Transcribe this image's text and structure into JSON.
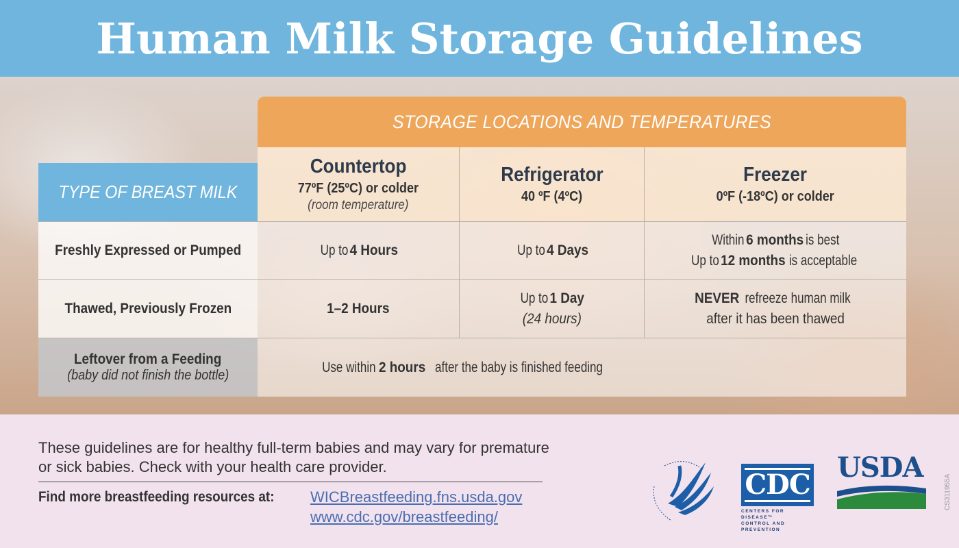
{
  "title": "Human Milk Storage Guidelines",
  "storage_header": "STORAGE LOCATIONS AND TEMPERATURES",
  "type_header": "TYPE OF BREAST MILK",
  "columns": {
    "countertop": {
      "title": "Countertop",
      "temp": "77ºF (25ºC) or colder",
      "note": "(room temperature)"
    },
    "refrigerator": {
      "title": "Refrigerator",
      "temp": "40 ºF (4ºC)"
    },
    "freezer": {
      "title": "Freezer",
      "temp": "0ºF (-18ºC) or colder"
    }
  },
  "rows": {
    "fresh": {
      "label": "Freshly Expressed or Pumped",
      "countertop_pre": "Up to ",
      "countertop_bold": "4 Hours",
      "refrigerator_pre": "Up to ",
      "refrigerator_bold": "4 Days",
      "freezer_l1_pre": "Within ",
      "freezer_l1_bold": "6 months",
      "freezer_l1_post": " is best",
      "freezer_l2_pre": "Up to ",
      "freezer_l2_bold": "12 months",
      "freezer_l2_post": " is acceptable"
    },
    "thawed": {
      "label": "Thawed, Previously Frozen",
      "countertop": "1–2 Hours",
      "refrigerator_pre": "Up to ",
      "refrigerator_bold": "1 Day",
      "refrigerator_note": "(24 hours)",
      "freezer_bold": "NEVER",
      "freezer_l1_post": " refreeze human milk",
      "freezer_l2": "after it has been thawed"
    },
    "leftover": {
      "label": "Leftover from a Feeding",
      "label_note": "(baby did not finish the bottle)",
      "value_pre": "Use within ",
      "value_bold": "2 hours",
      "value_post": " after the baby is finished feeding"
    }
  },
  "footer": {
    "note": "These guidelines are for healthy full-term babies and may vary for premature or sick babies. Check with your health care provider.",
    "find_label": "Find more breastfeeding resources at:",
    "link1": "WICBreastfeeding.fns.usda.gov",
    "link2": "www.cdc.gov/breastfeeding/",
    "cdc_text": "CDC",
    "cdc_sub1": "CENTERS FOR DISEASE™",
    "cdc_sub2": "CONTROL AND PREVENTION",
    "usda_text": "USDA",
    "code": "CS311955A"
  },
  "colors": {
    "blue": "#6fb5dd",
    "orange": "#eea65a",
    "footer_bg": "#f2e2ee",
    "link": "#4a6eb0"
  }
}
